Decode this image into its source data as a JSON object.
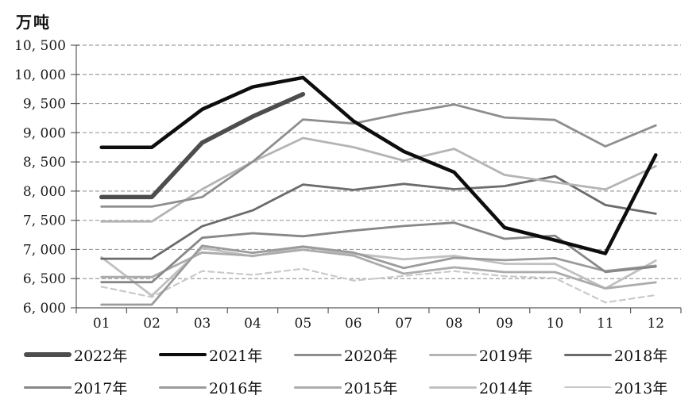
{
  "chart_data": {
    "type": "line",
    "title": "",
    "unit_label": "万吨",
    "xlabel": "",
    "ylabel": "万吨",
    "x_categories": [
      "01",
      "02",
      "03",
      "04",
      "05",
      "06",
      "07",
      "08",
      "09",
      "10",
      "11",
      "12"
    ],
    "ylim": [
      6000,
      10500
    ],
    "ytick_step": 500,
    "ytick_labels": [
      "6, 000",
      "6, 500",
      "7, 000",
      "7, 500",
      "8, 000",
      "8, 500",
      "9, 000",
      "9, 500",
      "10, 000",
      "10, 500"
    ],
    "grid": "horizontal-dashed",
    "legend_position": "bottom",
    "legend_rows": [
      [
        "2022年",
        "2021年",
        "2020年",
        "2019年",
        "2018年"
      ],
      [
        "2017年",
        "2016年",
        "2015年",
        "2014年",
        "2013年"
      ]
    ],
    "series": [
      {
        "name": "2022年",
        "color": "#4d4d4d",
        "width": 5.5,
        "dash": null,
        "values": [
          7898,
          7898,
          8830,
          9278,
          9661,
          null,
          null,
          null,
          null,
          null,
          null,
          null
        ]
      },
      {
        "name": "2021年",
        "color": "#0d0d0d",
        "width": 4.5,
        "dash": null,
        "values": [
          8750,
          8750,
          9402,
          9785,
          9945,
          9200,
          8679,
          8324,
          7375,
          7158,
          6931,
          8619
        ]
      },
      {
        "name": "2020年",
        "color": "#8e8e8e",
        "width": 2.8,
        "dash": null,
        "values": [
          7735,
          7735,
          7898,
          8503,
          9227,
          9158,
          9336,
          9485,
          9261,
          9220,
          8766,
          9125
        ]
      },
      {
        "name": "2019年",
        "color": "#b4b4b4",
        "width": 2.8,
        "dash": null,
        "values": [
          7479,
          7479,
          8033,
          8503,
          8909,
          8753,
          8522,
          8725,
          8277,
          8152,
          8029,
          8427
        ]
      },
      {
        "name": "2018年",
        "color": "#6b6b6b",
        "width": 2.8,
        "dash": null,
        "values": [
          6841,
          6841,
          7398,
          7670,
          8113,
          8020,
          8124,
          8033,
          8085,
          8255,
          7762,
          7612
        ]
      },
      {
        "name": "2017年",
        "color": "#878787",
        "width": 2.8,
        "dash": null,
        "values": [
          6439,
          6439,
          7200,
          7278,
          7226,
          7323,
          7402,
          7459,
          7183,
          7236,
          6615,
          6705
        ]
      },
      {
        "name": "2016年",
        "color": "#9b9b9b",
        "width": 2.8,
        "dash": null,
        "values": [
          6054,
          6054,
          7065,
          6942,
          7050,
          6947,
          6681,
          6857,
          6817,
          6851,
          6629,
          6722
        ]
      },
      {
        "name": "2015年",
        "color": "#acacac",
        "width": 2.8,
        "dash": null,
        "values": [
          6527,
          6527,
          6948,
          6891,
          6995,
          6895,
          6584,
          6694,
          6612,
          6612,
          6332,
          6437
        ]
      },
      {
        "name": "2014年",
        "color": "#c0c0c0",
        "width": 2.8,
        "dash": null,
        "values": [
          6866,
          6208,
          7025,
          6884,
          7043,
          6929,
          6832,
          6891,
          6754,
          6752,
          6332,
          6809
        ]
      },
      {
        "name": "2013年",
        "color": "#c9c9c9",
        "width": 2.2,
        "dash": "7 5",
        "values": [
          6362,
          6183,
          6630,
          6565,
          6670,
          6466,
          6547,
          6628,
          6542,
          6508,
          6091,
          6217
        ]
      }
    ]
  }
}
